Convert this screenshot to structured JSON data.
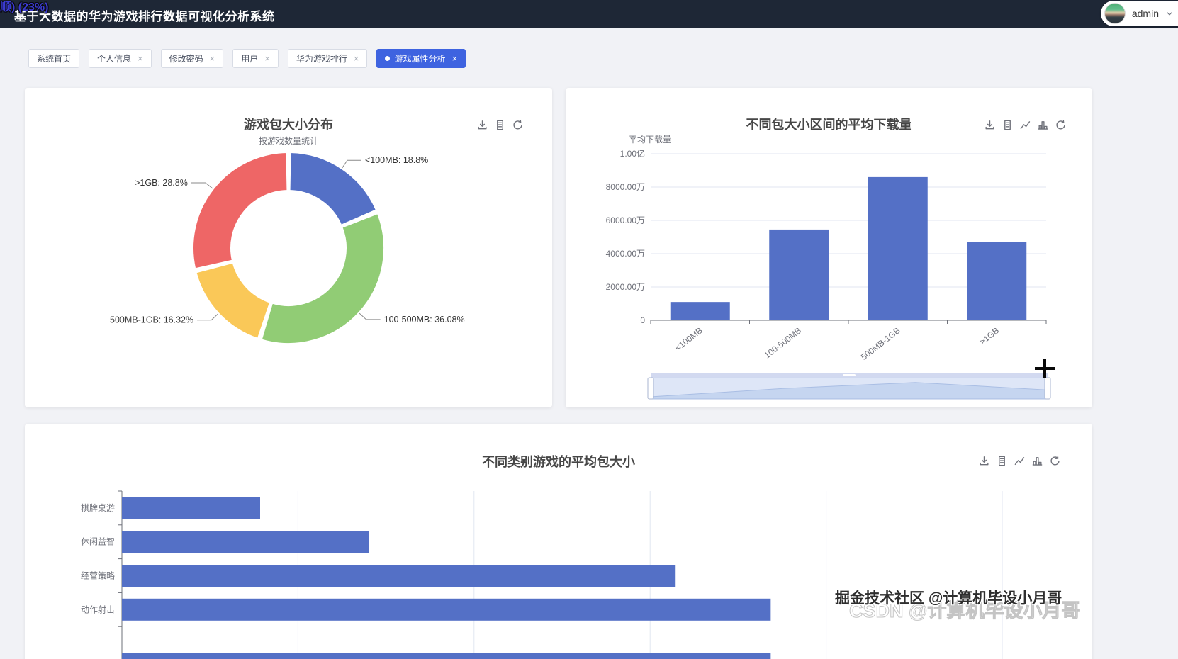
{
  "overlay": {
    "text": "顺) (23%)"
  },
  "header": {
    "title": "基于大数据的华为游戏排行数据可视化分析系统",
    "user": {
      "name": "admin",
      "avatar_icon": "user-avatar",
      "menu_icon": "chevron-down-icon"
    }
  },
  "tabs": {
    "close_glyph": "×",
    "items": [
      {
        "label": "系统首页",
        "closable": false,
        "active": false
      },
      {
        "label": "个人信息",
        "closable": true,
        "active": false
      },
      {
        "label": "修改密码",
        "closable": true,
        "active": false
      },
      {
        "label": "用户",
        "closable": true,
        "active": false
      },
      {
        "label": "华为游戏排行",
        "closable": true,
        "active": false
      },
      {
        "label": "游戏属性分析",
        "closable": true,
        "active": true
      }
    ]
  },
  "toolbars": {
    "pie": [
      "download-icon",
      "data-view-icon",
      "refresh-icon"
    ],
    "bar": [
      "download-icon",
      "data-view-icon",
      "line-chart-icon",
      "bar-chart-icon",
      "refresh-icon"
    ],
    "hbar": [
      "download-icon",
      "data-view-icon",
      "line-chart-icon",
      "bar-chart-icon",
      "refresh-icon"
    ]
  },
  "colors": {
    "header_bg": "#1e2736",
    "page_bg": "#f1f2f6",
    "active_tab": "#3e63e0",
    "bar_fill": "#5470c6",
    "pie_palette": [
      "#5470c6",
      "#91cc75",
      "#fac858",
      "#ee6666"
    ],
    "axis_label": "#6e7079",
    "grid_line": "#e0e6f1"
  },
  "chart_data": [
    {
      "type": "pie",
      "title": "游戏包大小分布",
      "subtitle": "按游戏数量统计",
      "donut": true,
      "labels": [
        "<100MB",
        "100-500MB",
        "500MB-1GB",
        ">1GB"
      ],
      "values": [
        18.8,
        36.08,
        16.32,
        28.8
      ],
      "unit": "%",
      "colors": [
        "#5470c6",
        "#91cc75",
        "#fac858",
        "#ee6666"
      ],
      "label_format": "{name}: {value}%"
    },
    {
      "type": "bar",
      "title": "不同包大小区间的平均下载量",
      "ylabel": "平均下载量",
      "categories": [
        "<100MB",
        "100-500MB",
        "500MB-1GB",
        ">1GB"
      ],
      "values": [
        11000000,
        54500000,
        86000000,
        47000000
      ],
      "ytick_labels": [
        "0",
        "2000.00万",
        "4000.00万",
        "6000.00万",
        "8000.00万",
        "1.00亿"
      ],
      "ylim": [
        0,
        100000000
      ],
      "bar_color": "#5470c6",
      "datazoom": true,
      "xlabel_rotate": -38
    },
    {
      "type": "bar-horizontal",
      "title": "不同类别游戏的平均包大小",
      "categories": [
        "棋牌桌游",
        "休闲益智",
        "经营策略",
        "动作射击"
      ],
      "values_estimated": [
        157,
        281,
        629,
        737
      ],
      "value_note": "x-axis tick labels are cut off by the viewport; values estimated from unlabeled gridlines (one gridline = 200 units)",
      "xlim": [
        0,
        1050
      ],
      "gridline_step": 200,
      "bar_color": "#5470c6",
      "partial_fifth_bar": {
        "visible": true,
        "label": null,
        "value_estimated": 737
      }
    }
  ],
  "watermark": {
    "line1": "掘金技术社区 @计算机毕设小月哥",
    "line2": "CSDN @计算机毕设小月哥"
  }
}
